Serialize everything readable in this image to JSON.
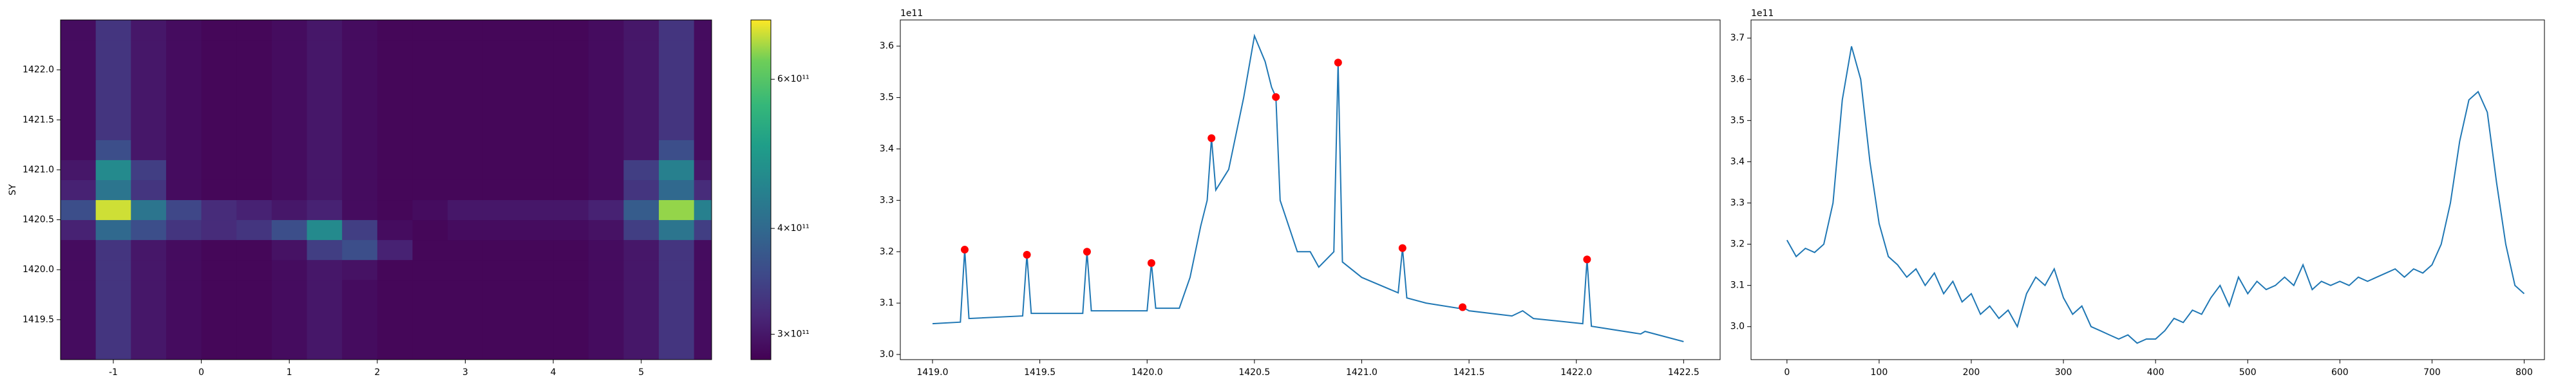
{
  "chart_data": [
    {
      "type": "heatmap",
      "x": [
        -1.4,
        -1,
        -0.6,
        -0.2,
        0.2,
        0.6,
        1,
        1.4,
        1.8,
        2.2,
        2.6,
        3,
        3.4,
        3.8,
        4.2,
        4.6,
        5,
        5.4,
        5.8
      ],
      "y": [
        1419.2,
        1419.4,
        1419.6,
        1419.8,
        1420.0,
        1420.2,
        1420.4,
        1420.6,
        1420.8,
        1421.0,
        1421.2,
        1421.4,
        1421.6,
        1421.8,
        1422.0,
        1422.2,
        1422.4
      ],
      "values": [
        [
          290000000000.0,
          330000000000.0,
          300000000000.0,
          290000000000.0,
          285000000000.0,
          285000000000.0,
          290000000000.0,
          300000000000.0,
          290000000000.0,
          285000000000.0,
          285000000000.0,
          285000000000.0,
          285000000000.0,
          285000000000.0,
          285000000000.0,
          290000000000.0,
          300000000000.0,
          330000000000.0,
          290000000000.0
        ],
        [
          290000000000.0,
          330000000000.0,
          300000000000.0,
          290000000000.0,
          285000000000.0,
          285000000000.0,
          290000000000.0,
          300000000000.0,
          290000000000.0,
          285000000000.0,
          285000000000.0,
          285000000000.0,
          285000000000.0,
          285000000000.0,
          285000000000.0,
          290000000000.0,
          300000000000.0,
          330000000000.0,
          290000000000.0
        ],
        [
          290000000000.0,
          330000000000.0,
          300000000000.0,
          290000000000.0,
          285000000000.0,
          285000000000.0,
          290000000000.0,
          300000000000.0,
          290000000000.0,
          285000000000.0,
          285000000000.0,
          285000000000.0,
          285000000000.0,
          285000000000.0,
          285000000000.0,
          290000000000.0,
          300000000000.0,
          330000000000.0,
          290000000000.0
        ],
        [
          290000000000.0,
          330000000000.0,
          300000000000.0,
          290000000000.0,
          285000000000.0,
          285000000000.0,
          290000000000.0,
          300000000000.0,
          290000000000.0,
          285000000000.0,
          285000000000.0,
          285000000000.0,
          285000000000.0,
          285000000000.0,
          285000000000.0,
          290000000000.0,
          300000000000.0,
          330000000000.0,
          290000000000.0
        ],
        [
          290000000000.0,
          330000000000.0,
          300000000000.0,
          290000000000.0,
          285000000000.0,
          285000000000.0,
          290000000000.0,
          300000000000.0,
          295000000000.0,
          285000000000.0,
          285000000000.0,
          285000000000.0,
          285000000000.0,
          285000000000.0,
          285000000000.0,
          290000000000.0,
          300000000000.0,
          330000000000.0,
          290000000000.0
        ],
        [
          290000000000.0,
          330000000000.0,
          300000000000.0,
          290000000000.0,
          285000000000.0,
          285000000000.0,
          295000000000.0,
          340000000000.0,
          360000000000.0,
          310000000000.0,
          285000000000.0,
          285000000000.0,
          285000000000.0,
          285000000000.0,
          285000000000.0,
          290000000000.0,
          300000000000.0,
          330000000000.0,
          290000000000.0
        ],
        [
          310000000000.0,
          400000000000.0,
          360000000000.0,
          330000000000.0,
          320000000000.0,
          330000000000.0,
          360000000000.0,
          460000000000.0,
          340000000000.0,
          290000000000.0,
          285000000000.0,
          290000000000.0,
          290000000000.0,
          290000000000.0,
          290000000000.0,
          295000000000.0,
          340000000000.0,
          420000000000.0,
          340000000000.0
        ],
        [
          360000000000.0,
          680000000000.0,
          420000000000.0,
          350000000000.0,
          320000000000.0,
          310000000000.0,
          300000000000.0,
          310000000000.0,
          290000000000.0,
          285000000000.0,
          290000000000.0,
          300000000000.0,
          300000000000.0,
          300000000000.0,
          300000000000.0,
          310000000000.0,
          380000000000.0,
          650000000000.0,
          440000000000.0
        ],
        [
          310000000000.0,
          420000000000.0,
          330000000000.0,
          290000000000.0,
          285000000000.0,
          285000000000.0,
          290000000000.0,
          300000000000.0,
          290000000000.0,
          285000000000.0,
          285000000000.0,
          285000000000.0,
          285000000000.0,
          285000000000.0,
          285000000000.0,
          290000000000.0,
          330000000000.0,
          400000000000.0,
          320000000000.0
        ],
        [
          300000000000.0,
          460000000000.0,
          340000000000.0,
          290000000000.0,
          285000000000.0,
          285000000000.0,
          290000000000.0,
          300000000000.0,
          290000000000.0,
          285000000000.0,
          285000000000.0,
          285000000000.0,
          285000000000.0,
          285000000000.0,
          285000000000.0,
          290000000000.0,
          340000000000.0,
          440000000000.0,
          300000000000.0
        ],
        [
          290000000000.0,
          360000000000.0,
          300000000000.0,
          290000000000.0,
          285000000000.0,
          285000000000.0,
          290000000000.0,
          300000000000.0,
          290000000000.0,
          285000000000.0,
          285000000000.0,
          285000000000.0,
          285000000000.0,
          285000000000.0,
          285000000000.0,
          290000000000.0,
          300000000000.0,
          360000000000.0,
          290000000000.0
        ],
        [
          290000000000.0,
          330000000000.0,
          300000000000.0,
          290000000000.0,
          285000000000.0,
          285000000000.0,
          290000000000.0,
          300000000000.0,
          290000000000.0,
          285000000000.0,
          285000000000.0,
          285000000000.0,
          285000000000.0,
          285000000000.0,
          285000000000.0,
          290000000000.0,
          300000000000.0,
          330000000000.0,
          290000000000.0
        ],
        [
          290000000000.0,
          330000000000.0,
          300000000000.0,
          290000000000.0,
          285000000000.0,
          285000000000.0,
          290000000000.0,
          300000000000.0,
          290000000000.0,
          285000000000.0,
          285000000000.0,
          285000000000.0,
          285000000000.0,
          285000000000.0,
          285000000000.0,
          290000000000.0,
          300000000000.0,
          330000000000.0,
          290000000000.0
        ],
        [
          290000000000.0,
          330000000000.0,
          300000000000.0,
          290000000000.0,
          285000000000.0,
          285000000000.0,
          290000000000.0,
          300000000000.0,
          290000000000.0,
          285000000000.0,
          285000000000.0,
          285000000000.0,
          285000000000.0,
          285000000000.0,
          285000000000.0,
          290000000000.0,
          300000000000.0,
          330000000000.0,
          290000000000.0
        ],
        [
          290000000000.0,
          330000000000.0,
          300000000000.0,
          290000000000.0,
          285000000000.0,
          285000000000.0,
          290000000000.0,
          300000000000.0,
          290000000000.0,
          285000000000.0,
          285000000000.0,
          285000000000.0,
          285000000000.0,
          285000000000.0,
          285000000000.0,
          290000000000.0,
          300000000000.0,
          330000000000.0,
          290000000000.0
        ],
        [
          290000000000.0,
          330000000000.0,
          300000000000.0,
          290000000000.0,
          285000000000.0,
          285000000000.0,
          290000000000.0,
          300000000000.0,
          290000000000.0,
          285000000000.0,
          285000000000.0,
          285000000000.0,
          285000000000.0,
          285000000000.0,
          285000000000.0,
          290000000000.0,
          300000000000.0,
          330000000000.0,
          290000000000.0
        ],
        [
          290000000000.0,
          330000000000.0,
          300000000000.0,
          290000000000.0,
          285000000000.0,
          285000000000.0,
          290000000000.0,
          300000000000.0,
          290000000000.0,
          285000000000.0,
          285000000000.0,
          285000000000.0,
          285000000000.0,
          285000000000.0,
          285000000000.0,
          290000000000.0,
          300000000000.0,
          330000000000.0,
          290000000000.0
        ]
      ],
      "xlim": [
        -1.6,
        5.8
      ],
      "ylim": [
        1419.1,
        1422.5
      ],
      "xticks": [
        -1,
        0,
        1,
        2,
        3,
        4,
        5
      ],
      "yticks": [
        1419.5,
        {
          "value": 1420,
          "label": "1420.0"
        },
        1420.5,
        {
          "value": 1421,
          "label": "1421.0"
        },
        1421.5,
        {
          "value": 1422,
          "label": "1422.0"
        }
      ],
      "ylabel": "SY",
      "colormap": "viridis",
      "color_scale": "log",
      "clim": [
        280000000000.0,
        705000000000.0
      ],
      "cticks": [
        {
          "value": 300000000000.0,
          "label": "3×10¹¹"
        },
        {
          "value": 400000000000.0,
          "label": "4×10¹¹"
        },
        {
          "value": 600000000000.0,
          "label": "6×10¹¹"
        }
      ]
    },
    {
      "type": "line",
      "series": [
        {
          "kind": "line",
          "color": "#1f77b4",
          "x": [
            1419.0,
            1419.13,
            1419.15,
            1419.17,
            1419.42,
            1419.44,
            1419.46,
            1419.7,
            1419.72,
            1419.74,
            1420.0,
            1420.02,
            1420.04,
            1420.15,
            1420.2,
            1420.25,
            1420.28,
            1420.3,
            1420.32,
            1420.38,
            1420.45,
            1420.5,
            1420.55,
            1420.58,
            1420.6,
            1420.62,
            1420.7,
            1420.76,
            1420.8,
            1420.87,
            1420.89,
            1420.91,
            1421.0,
            1421.17,
            1421.19,
            1421.21,
            1421.3,
            1421.45,
            1421.47,
            1421.5,
            1421.7,
            1421.75,
            1421.8,
            1422.03,
            1422.05,
            1422.07,
            1422.3,
            1422.32,
            1422.5
          ],
          "values": [
            3.06,
            3.063,
            3.204,
            3.07,
            3.075,
            3.194,
            3.08,
            3.08,
            3.2,
            3.085,
            3.085,
            3.178,
            3.09,
            3.09,
            3.15,
            3.25,
            3.3,
            3.421,
            3.32,
            3.36,
            3.5,
            3.62,
            3.57,
            3.52,
            3.501,
            3.3,
            3.2,
            3.2,
            3.17,
            3.2,
            3.568,
            3.18,
            3.15,
            3.12,
            3.207,
            3.11,
            3.1,
            3.09,
            3.092,
            3.085,
            3.075,
            3.085,
            3.07,
            3.06,
            3.185,
            3.055,
            3.04,
            3.045,
            3.025
          ]
        },
        {
          "kind": "scatter",
          "color": "#ff0000",
          "x": [
            1419.15,
            1419.44,
            1419.72,
            1420.02,
            1420.3,
            1420.6,
            1420.89,
            1421.19,
            1421.47,
            1422.05
          ],
          "values": [
            3.204,
            3.194,
            3.2,
            3.178,
            3.421,
            3.501,
            3.568,
            3.207,
            3.092,
            3.185
          ]
        }
      ],
      "xlim": [
        1418.85,
        1422.67
      ],
      "ylim": [
        2.99,
        3.651
      ],
      "xticks": [
        {
          "value": 1419,
          "label": "1419.0"
        },
        1419.5,
        {
          "value": 1420,
          "label": "1420.0"
        },
        1420.5,
        {
          "value": 1421,
          "label": "1421.0"
        },
        1421.5,
        {
          "value": 1422,
          "label": "1422.0"
        },
        1422.5
      ],
      "yticks": [
        {
          "value": 3,
          "label": "3.0"
        },
        3.1,
        3.2,
        3.3,
        3.4,
        3.5,
        3.6
      ],
      "offset_label": "1e11"
    },
    {
      "type": "line",
      "series": [
        {
          "kind": "line",
          "color": "#1f77b4",
          "x": [
            0,
            10,
            20,
            30,
            40,
            50,
            60,
            70,
            80,
            90,
            100,
            110,
            120,
            130,
            140,
            150,
            160,
            170,
            180,
            190,
            200,
            210,
            220,
            230,
            240,
            250,
            260,
            270,
            280,
            290,
            300,
            310,
            320,
            330,
            340,
            350,
            360,
            370,
            380,
            390,
            400,
            410,
            420,
            430,
            440,
            450,
            460,
            470,
            480,
            490,
            500,
            510,
            520,
            530,
            540,
            550,
            560,
            570,
            580,
            590,
            600,
            610,
            620,
            630,
            640,
            650,
            660,
            670,
            680,
            690,
            700,
            710,
            720,
            730,
            740,
            750,
            760,
            770,
            780,
            790,
            800
          ],
          "values": [
            3.21,
            3.17,
            3.19,
            3.18,
            3.2,
            3.3,
            3.55,
            3.68,
            3.6,
            3.4,
            3.25,
            3.17,
            3.15,
            3.12,
            3.14,
            3.1,
            3.13,
            3.08,
            3.11,
            3.06,
            3.08,
            3.03,
            3.05,
            3.02,
            3.04,
            3.0,
            3.08,
            3.12,
            3.1,
            3.14,
            3.07,
            3.03,
            3.05,
            3.0,
            2.99,
            2.98,
            2.97,
            2.98,
            2.96,
            2.97,
            2.97,
            2.99,
            3.02,
            3.01,
            3.04,
            3.03,
            3.07,
            3.1,
            3.05,
            3.12,
            3.08,
            3.11,
            3.09,
            3.1,
            3.12,
            3.1,
            3.15,
            3.09,
            3.11,
            3.1,
            3.11,
            3.1,
            3.12,
            3.11,
            3.12,
            3.13,
            3.14,
            3.12,
            3.14,
            3.13,
            3.15,
            3.2,
            3.3,
            3.45,
            3.55,
            3.57,
            3.52,
            3.35,
            3.2,
            3.1,
            3.08
          ]
        }
      ],
      "xlim": [
        -39,
        822
      ],
      "ylim": [
        2.92,
        3.744
      ],
      "xticks": [
        0,
        100,
        200,
        300,
        400,
        500,
        600,
        700,
        800
      ],
      "yticks": [
        {
          "value": 3,
          "label": "3.0"
        },
        3.1,
        3.2,
        3.3,
        3.4,
        3.5,
        3.6,
        3.7
      ],
      "offset_label": "1e11"
    }
  ]
}
